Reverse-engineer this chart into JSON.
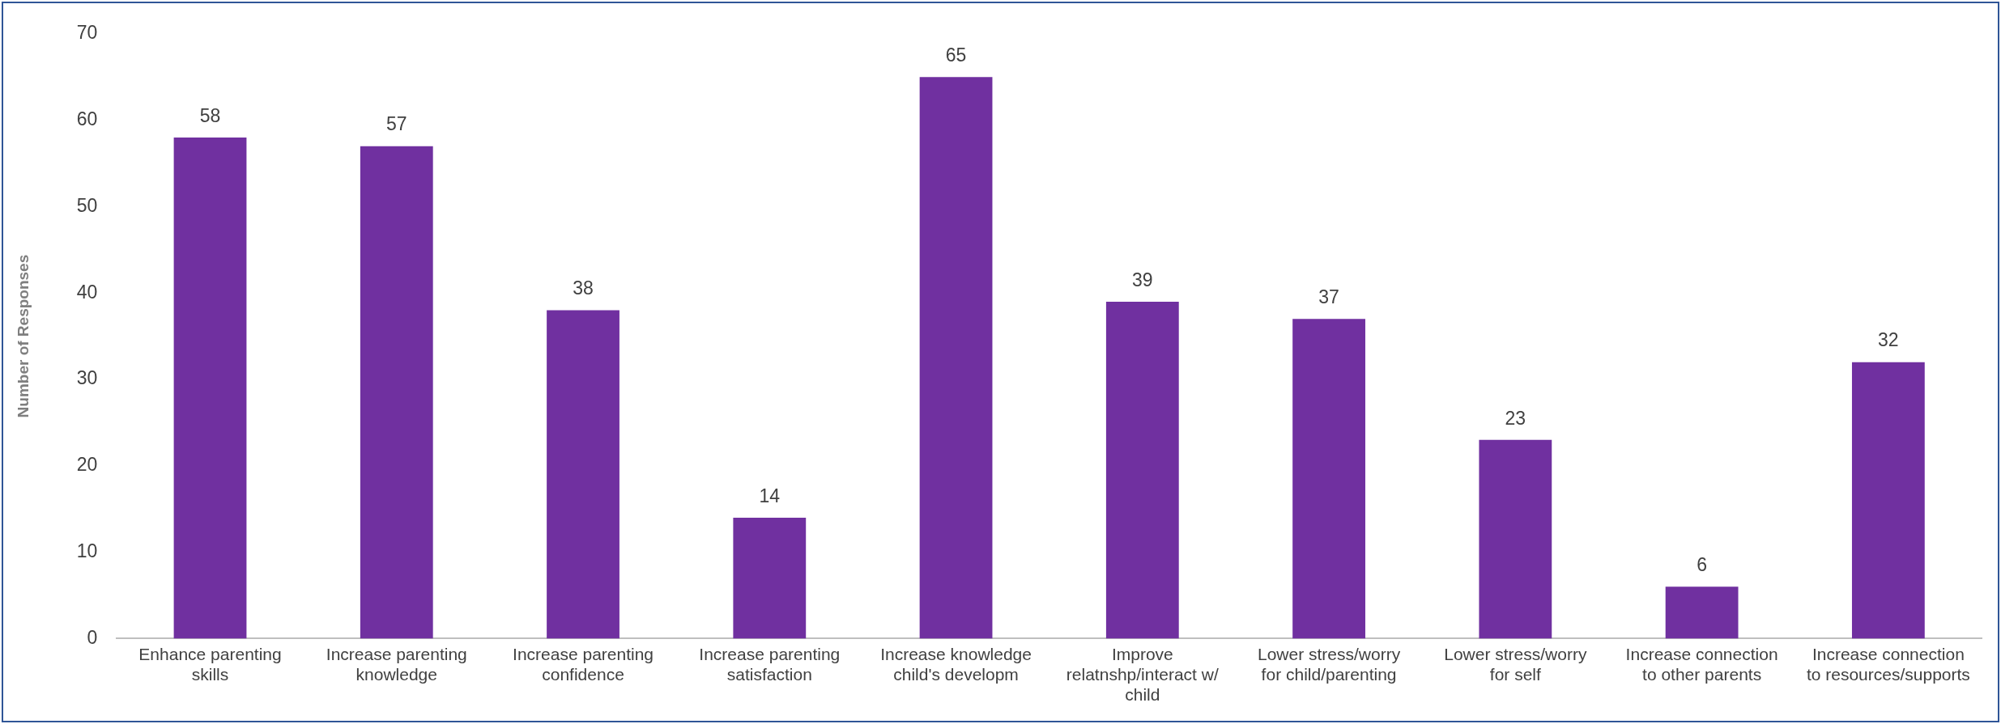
{
  "chart_data": {
    "type": "bar",
    "ylabel": "Number of Responses",
    "categories": [
      "Enhance parenting skills",
      "Increase parenting knowledge",
      "Increase parenting confidence",
      "Increase parenting satisfaction",
      "Increase knowledge child's developm",
      "Improve relatnshp/interact w/ child",
      "Lower stress/worry for child/parenting",
      "Lower stress/worry for self",
      "Increase connection to other parents",
      "Increase connection to resources/supports"
    ],
    "values": [
      58,
      57,
      38,
      14,
      65,
      39,
      37,
      23,
      6,
      32
    ],
    "color": "#7030a0",
    "ylim": [
      0,
      70
    ],
    "yticks": [
      0,
      10,
      20,
      30,
      40,
      50,
      60,
      70
    ],
    "grid": false,
    "data_labels": true,
    "legend": false
  }
}
